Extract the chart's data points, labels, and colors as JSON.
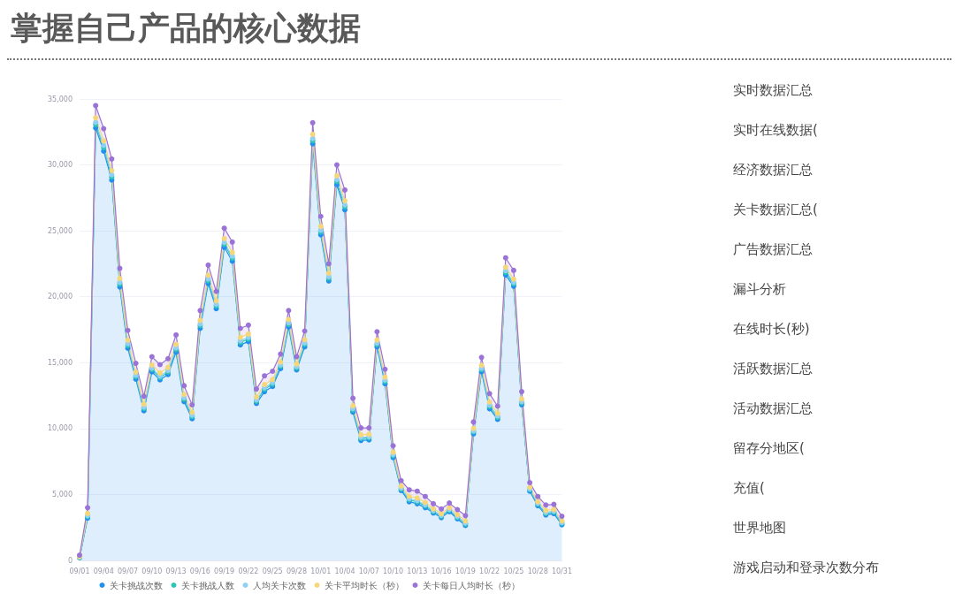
{
  "chart_data": [
    {
      "type": "area",
      "title": "掌握自己产品的核心数据",
      "stacked": true,
      "categories": [
        "09/01",
        null,
        null,
        "09/04",
        null,
        null,
        "09/07",
        null,
        null,
        "09/10",
        null,
        null,
        "09/13",
        null,
        null,
        "09/16",
        null,
        null,
        "09/19",
        null,
        null,
        "09/22",
        null,
        null,
        "09/25",
        null,
        null,
        "09/28",
        null,
        null,
        "10/01",
        null,
        null,
        "10/04",
        null,
        null,
        "10/07",
        null,
        null,
        "10/10",
        null,
        null,
        "10/13",
        null,
        null,
        "10/16",
        null,
        null,
        "10/19",
        null,
        null,
        "10/22",
        null,
        null,
        "10/25",
        null,
        null,
        "10/28",
        null,
        null,
        "10/31"
      ],
      "series": [
        {
          "name": "关卡挑战次数",
          "color": "#1f8ff0",
          "values": [
            200,
            3200,
            32800,
            31050,
            28850,
            20750,
            16100,
            13750,
            11350,
            14300,
            13700,
            14100,
            15800,
            12050,
            10750,
            17600,
            21000,
            19100,
            23750,
            22700,
            16350,
            16600,
            11900,
            12800,
            13200,
            14550,
            17700,
            14450,
            16200,
            31600,
            24700,
            21200,
            28500,
            26600,
            11250,
            9100,
            9150,
            16200,
            13400,
            7800,
            5300,
            4450,
            4300,
            4000,
            3600,
            3250,
            3700,
            3150,
            2650,
            9600,
            14300,
            11500,
            10700,
            21650,
            20800,
            11800,
            5250,
            4150,
            3450,
            3550,
            2700
          ]
        },
        {
          "name": "关卡挑战人数",
          "color": "#2cc4b8",
          "values": [
            30,
            120,
            260,
            260,
            240,
            210,
            200,
            180,
            170,
            170,
            170,
            180,
            200,
            180,
            160,
            200,
            210,
            200,
            220,
            220,
            190,
            190,
            170,
            180,
            170,
            170,
            190,
            150,
            180,
            240,
            210,
            200,
            230,
            230,
            160,
            140,
            140,
            170,
            170,
            140,
            110,
            140,
            140,
            130,
            110,
            100,
            100,
            110,
            110,
            140,
            170,
            170,
            150,
            200,
            180,
            150,
            100,
            110,
            110,
            110,
            100
          ]
        },
        {
          "name": "人均关卡次数",
          "color": "#8fd0f5",
          "values": [
            20,
            80,
            170,
            170,
            160,
            140,
            140,
            120,
            110,
            120,
            120,
            120,
            130,
            120,
            110,
            140,
            140,
            130,
            150,
            150,
            130,
            130,
            110,
            120,
            120,
            110,
            130,
            100,
            120,
            160,
            140,
            130,
            150,
            150,
            110,
            100,
            90,
            120,
            110,
            90,
            80,
            90,
            100,
            90,
            70,
            70,
            70,
            70,
            80,
            90,
            110,
            120,
            100,
            130,
            120,
            100,
            70,
            70,
            80,
            70,
            70
          ]
        },
        {
          "name": "关卡平均时长（秒）",
          "color": "#f5d77a",
          "values": [
            40,
            160,
            340,
            340,
            320,
            280,
            270,
            240,
            220,
            230,
            230,
            240,
            260,
            240,
            210,
            270,
            280,
            260,
            290,
            290,
            250,
            250,
            220,
            240,
            230,
            220,
            250,
            200,
            240,
            320,
            280,
            260,
            300,
            300,
            210,
            190,
            180,
            230,
            220,
            180,
            150,
            180,
            190,
            170,
            140,
            130,
            130,
            140,
            150,
            180,
            220,
            230,
            200,
            260,
            240,
            200,
            130,
            140,
            150,
            140,
            130
          ]
        },
        {
          "name": "关卡每日人均时长（秒）",
          "color": "#9b72d6",
          "values": [
            110,
            440,
            930,
            930,
            880,
            770,
            740,
            660,
            600,
            630,
            630,
            660,
            710,
            660,
            570,
            740,
            770,
            710,
            790,
            790,
            680,
            680,
            600,
            660,
            630,
            600,
            680,
            550,
            660,
            880,
            770,
            710,
            820,
            820,
            570,
            520,
            490,
            630,
            600,
            490,
            410,
            490,
            520,
            460,
            380,
            350,
            350,
            380,
            410,
            490,
            600,
            630,
            550,
            710,
            660,
            550,
            350,
            380,
            410,
            380,
            350
          ]
        }
      ],
      "ylim": [
        0,
        35000
      ],
      "yticks": [
        0,
        {
          "value": 5000,
          "label": "5,000"
        },
        {
          "value": 10000,
          "label": "10,000"
        },
        {
          "value": 15000,
          "label": "15,000"
        },
        {
          "value": 20000,
          "label": "20,000"
        },
        {
          "value": 25000,
          "label": "25,000"
        },
        {
          "value": 30000,
          "label": "30,000"
        },
        {
          "value": 35000,
          "label": "35,000"
        }
      ],
      "grid": "y",
      "legend": "bottom",
      "marker": "circle"
    },
    {
      "type": "other",
      "annotations": [
        "实时数据汇总",
        "实时在线数据(",
        "经济数据汇总",
        "关卡数据汇总(",
        "广告数据汇总",
        "漏斗分析",
        "在线时长(秒)",
        "活跃数据汇总",
        "活动数据汇总",
        "留存分地区(",
        "充值(",
        "世界地图",
        "游戏启动和登录次数分布"
      ]
    }
  ]
}
